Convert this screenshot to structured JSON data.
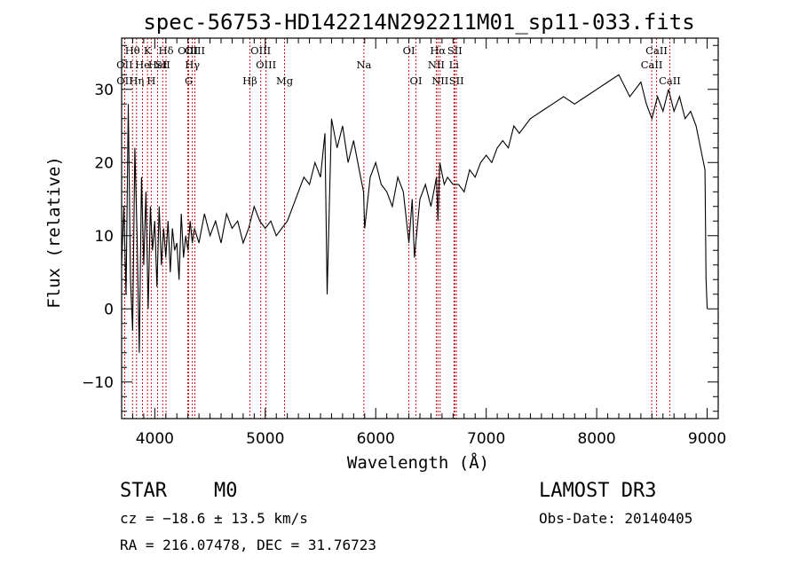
{
  "chart_data": {
    "type": "line",
    "title": "spec-56753-HD142214N292211M01_sp11-033.fits",
    "xlabel": "Wavelength (Å)",
    "ylabel": "Flux (relative)",
    "xlim": [
      3700,
      9100
    ],
    "ylim": [
      -15,
      37
    ],
    "x_ticks": [
      4000,
      5000,
      6000,
      7000,
      8000,
      9000
    ],
    "x_tick_labels": [
      "4000",
      "5000",
      "6000",
      "7000",
      "8000",
      "9000"
    ],
    "y_ticks": [
      -10,
      0,
      10,
      20,
      30
    ],
    "y_tick_labels": [
      "−10",
      "0",
      "10",
      "20",
      "30"
    ],
    "x_minor_step": 100,
    "y_minor_step": 2,
    "series": [
      {
        "name": "spectrum",
        "x": [
          3700,
          3720,
          3740,
          3760,
          3780,
          3800,
          3820,
          3840,
          3860,
          3880,
          3900,
          3920,
          3940,
          3960,
          3980,
          4000,
          4020,
          4040,
          4060,
          4080,
          4100,
          4120,
          4140,
          4160,
          4180,
          4200,
          4220,
          4240,
          4260,
          4280,
          4300,
          4320,
          4340,
          4360,
          4380,
          4400,
          4450,
          4500,
          4550,
          4600,
          4650,
          4700,
          4750,
          4800,
          4850,
          4900,
          4950,
          5000,
          5050,
          5100,
          5150,
          5200,
          5250,
          5300,
          5350,
          5400,
          5450,
          5500,
          5540,
          5560,
          5600,
          5650,
          5700,
          5750,
          5800,
          5850,
          5890,
          5900,
          5950,
          6000,
          6050,
          6100,
          6150,
          6200,
          6250,
          6300,
          6330,
          6350,
          6400,
          6450,
          6500,
          6550,
          6563,
          6580,
          6620,
          6650,
          6700,
          6750,
          6800,
          6850,
          6900,
          6950,
          7000,
          7050,
          7100,
          7150,
          7200,
          7250,
          7300,
          7400,
          7500,
          7600,
          7700,
          7800,
          7900,
          8000,
          8100,
          8200,
          8300,
          8400,
          8450,
          8500,
          8550,
          8600,
          8650,
          8700,
          8750,
          8800,
          8850,
          8900,
          8940,
          8980,
          8990,
          9000
        ],
        "y": [
          6,
          14,
          2,
          28,
          4,
          -3,
          22,
          10,
          -6,
          18,
          6,
          16,
          0,
          14,
          8,
          12,
          3,
          14,
          6,
          11,
          7,
          12,
          5,
          11,
          8,
          9,
          4,
          13,
          7,
          10,
          8,
          12,
          9,
          11,
          10,
          9,
          13,
          10,
          12,
          9,
          13,
          11,
          12,
          9,
          11,
          14,
          12,
          11,
          12,
          10,
          11,
          12,
          14,
          16,
          18,
          17,
          20,
          18,
          24,
          2,
          26,
          22,
          25,
          20,
          23,
          19,
          16,
          11,
          18,
          20,
          17,
          16,
          14,
          18,
          16,
          9,
          15,
          7,
          15,
          17,
          14,
          18,
          12,
          20,
          17,
          18,
          17,
          17,
          16,
          19,
          18,
          20,
          21,
          20,
          22,
          23,
          22,
          25,
          24,
          26,
          27,
          28,
          29,
          28,
          29,
          30,
          31,
          32,
          29,
          31,
          28,
          26,
          29,
          27,
          30,
          27,
          29,
          26,
          27,
          25,
          22,
          19,
          4,
          0
        ]
      }
    ],
    "lines": [
      {
        "label": "Hθ",
        "x": 3798,
        "row": 1
      },
      {
        "label": "OII",
        "x": 3727,
        "row": 2
      },
      {
        "label": "OII",
        "x": 3728,
        "row": 3
      },
      {
        "label": "Hη",
        "x": 3835,
        "row": 3
      },
      {
        "label": "He",
        "x": 3889,
        "row": 2
      },
      {
        "label": "K",
        "x": 3934,
        "row": 1
      },
      {
        "label": "H",
        "x": 3968,
        "row": 3
      },
      {
        "label": "HeI",
        "x": 4026,
        "row": 2
      },
      {
        "label": "SII",
        "x": 4072,
        "row": 2
      },
      {
        "label": "Hδ",
        "x": 4102,
        "row": 1
      },
      {
        "label": "OIII",
        "x": 4300,
        "row": 1
      },
      {
        "label": "G",
        "x": 4307,
        "row": 3
      },
      {
        "label": "Hγ",
        "x": 4340,
        "row": 2
      },
      {
        "label": "OIII",
        "x": 4363,
        "row": 1
      },
      {
        "label": "Hβ",
        "x": 4861,
        "row": 3
      },
      {
        "label": "OIII",
        "x": 4959,
        "row": 1
      },
      {
        "label": "OIII",
        "x": 5007,
        "row": 2
      },
      {
        "label": "Mg",
        "x": 5175,
        "row": 3
      },
      {
        "label": "Na",
        "x": 5893,
        "row": 2
      },
      {
        "label": "OI",
        "x": 6300,
        "row": 1
      },
      {
        "label": "OI",
        "x": 6364,
        "row": 3
      },
      {
        "label": "NII",
        "x": 6548,
        "row": 2
      },
      {
        "label": "Hα",
        "x": 6563,
        "row": 1
      },
      {
        "label": "NII",
        "x": 6583,
        "row": 3
      },
      {
        "label": "Li",
        "x": 6708,
        "row": 2
      },
      {
        "label": "SII",
        "x": 6716,
        "row": 1
      },
      {
        "label": "SII",
        "x": 6731,
        "row": 3
      },
      {
        "label": "CaII",
        "x": 8498,
        "row": 2
      },
      {
        "label": "CaII",
        "x": 8542,
        "row": 1
      },
      {
        "label": "CaII",
        "x": 8662,
        "row": 3
      }
    ]
  },
  "info": {
    "class_label": "STAR",
    "subclass_label": "M0",
    "survey_label": "LAMOST DR3",
    "cz_label": "cz = −18.6 ± 13.5 km/s",
    "obs_date_label": "Obs-Date: 20140405",
    "radec_label": "RA = 216.07478, DEC =  31.76723"
  },
  "colors": {
    "spectrum": "#000000",
    "line_markers": "#c00000",
    "axes": "#000000",
    "background": "#ffffff"
  }
}
